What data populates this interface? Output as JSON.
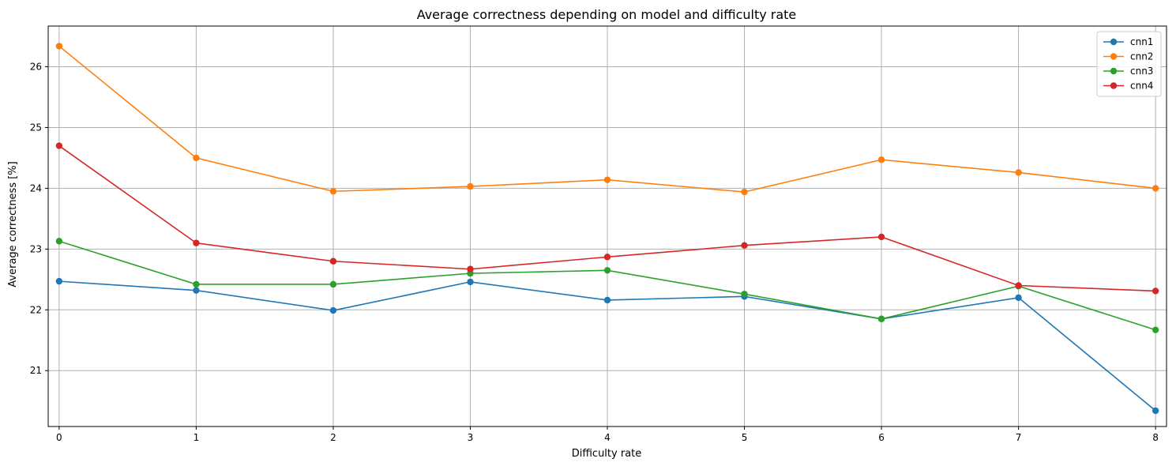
{
  "chart_data": {
    "type": "line",
    "title": "Average correctness depending on model and difficulty rate",
    "xlabel": "Difficulty rate",
    "ylabel": "Average correctness [%]",
    "x": [
      0,
      1,
      2,
      3,
      4,
      5,
      6,
      7,
      8
    ],
    "x_ticks": [
      "0",
      "1",
      "2",
      "3",
      "4",
      "5",
      "6",
      "7",
      "8"
    ],
    "y_ticks": [
      "21",
      "22",
      "23",
      "24",
      "25",
      "26"
    ],
    "xlim": [
      -0.08,
      8.08
    ],
    "ylim": [
      20.08,
      26.67
    ],
    "grid": true,
    "legend_position": "top-right",
    "series": [
      {
        "name": "cnn1",
        "color": "#1f77b4",
        "values": [
          22.47,
          22.32,
          21.99,
          22.46,
          22.16,
          22.22,
          21.85,
          22.2,
          20.34
        ]
      },
      {
        "name": "cnn2",
        "color": "#ff7f0e",
        "values": [
          26.34,
          24.5,
          23.95,
          24.03,
          24.14,
          23.94,
          24.47,
          24.26,
          24.0
        ]
      },
      {
        "name": "cnn3",
        "color": "#2ca02c",
        "values": [
          23.13,
          22.42,
          22.42,
          22.6,
          22.65,
          22.26,
          21.85,
          22.39,
          21.67
        ]
      },
      {
        "name": "cnn4",
        "color": "#d62728",
        "values": [
          24.7,
          23.1,
          22.8,
          22.67,
          22.87,
          23.06,
          23.2,
          22.4,
          22.31
        ]
      }
    ]
  }
}
